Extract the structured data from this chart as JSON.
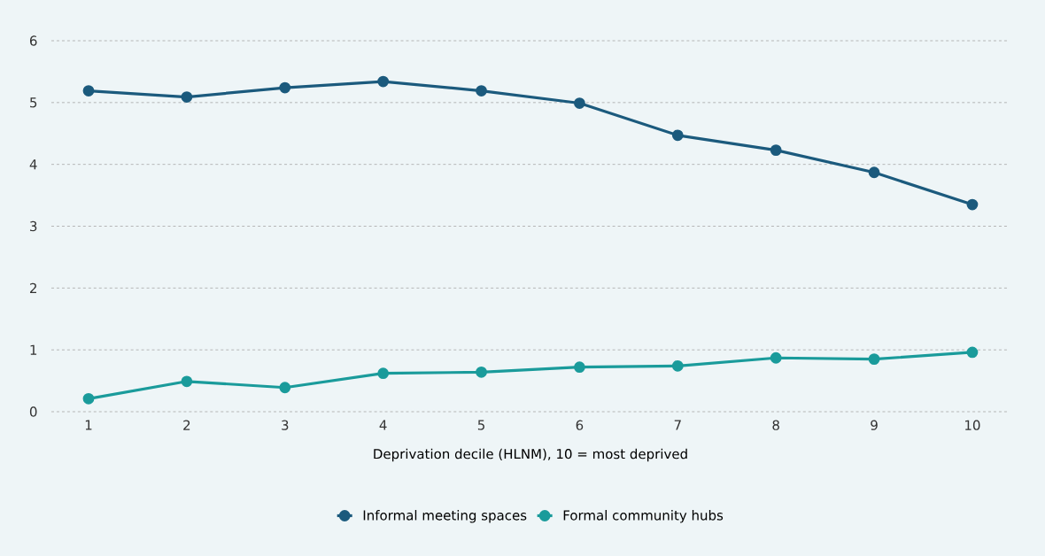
{
  "chart_data": {
    "type": "line",
    "xlabel": "Deprivation decile (HLNM), 10 = most deprived",
    "categories": [
      "1",
      "2",
      "3",
      "4",
      "5",
      "6",
      "7",
      "8",
      "9",
      "10"
    ],
    "series": [
      {
        "name": "Informal meeting spaces",
        "color": "#1b5a7d",
        "values": [
          5.19,
          5.09,
          5.24,
          5.34,
          5.19,
          4.99,
          4.47,
          4.23,
          3.87,
          3.35
        ]
      },
      {
        "name": "Formal community hubs",
        "color": "#1a9b9b",
        "values": [
          0.21,
          0.49,
          0.39,
          0.62,
          0.64,
          0.72,
          0.74,
          0.87,
          0.85,
          0.96
        ]
      }
    ],
    "ylim": [
      0,
      6
    ],
    "yticks": [
      0,
      1,
      2,
      3,
      4,
      5,
      6
    ],
    "grid": "y",
    "legend": "bottom",
    "marker": "circle",
    "line_style": "solid"
  }
}
